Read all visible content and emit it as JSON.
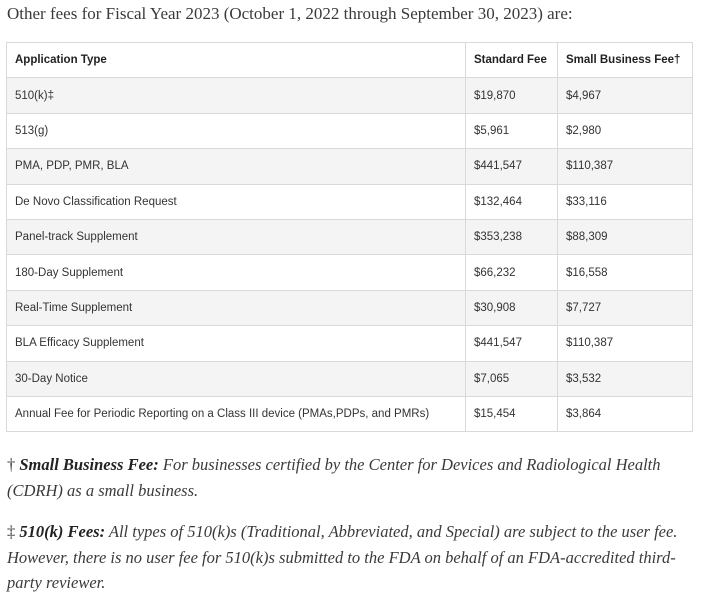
{
  "intro_text": "Other fees for Fiscal Year 2023 (October 1, 2022 through September 30, 2023) are:",
  "table": {
    "headers": [
      "Application Type",
      "Standard Fee",
      "Small Business Fee†"
    ],
    "rows": [
      [
        "510(k)‡",
        "$19,870",
        "$4,967"
      ],
      [
        "513(g)",
        "$5,961",
        "$2,980"
      ],
      [
        "PMA, PDP, PMR, BLA",
        "$441,547",
        "$110,387"
      ],
      [
        "De Novo Classification Request",
        "$132,464",
        "$33,116"
      ],
      [
        "Panel-track Supplement",
        "$353,238",
        "$88,309"
      ],
      [
        "180-Day Supplement",
        "$66,232",
        "$16,558"
      ],
      [
        "Real-Time Supplement",
        "$30,908",
        "$7,727"
      ],
      [
        "BLA Efficacy Supplement",
        "$441,547",
        "$110,387"
      ],
      [
        "30-Day Notice",
        "$7,065",
        "$3,532"
      ],
      [
        "Annual Fee for Periodic Reporting on a Class III device (PMAs,PDPs, and PMRs)",
        "$15,454",
        "$3,864"
      ]
    ]
  },
  "footnotes": [
    {
      "symbol": "†",
      "title": "Small Business Fee:",
      "text": "For businesses certified by the Center for Devices and Radiological Health (CDRH) as a small business."
    },
    {
      "symbol": "‡",
      "title": "510(k) Fees:",
      "text": "All types of 510(k)s (Traditional, Abbreviated, and Special) are subject to the user fee. However, there is no user fee for 510(k)s submitted to the FDA on behalf of an FDA-accredited third-party reviewer."
    }
  ]
}
